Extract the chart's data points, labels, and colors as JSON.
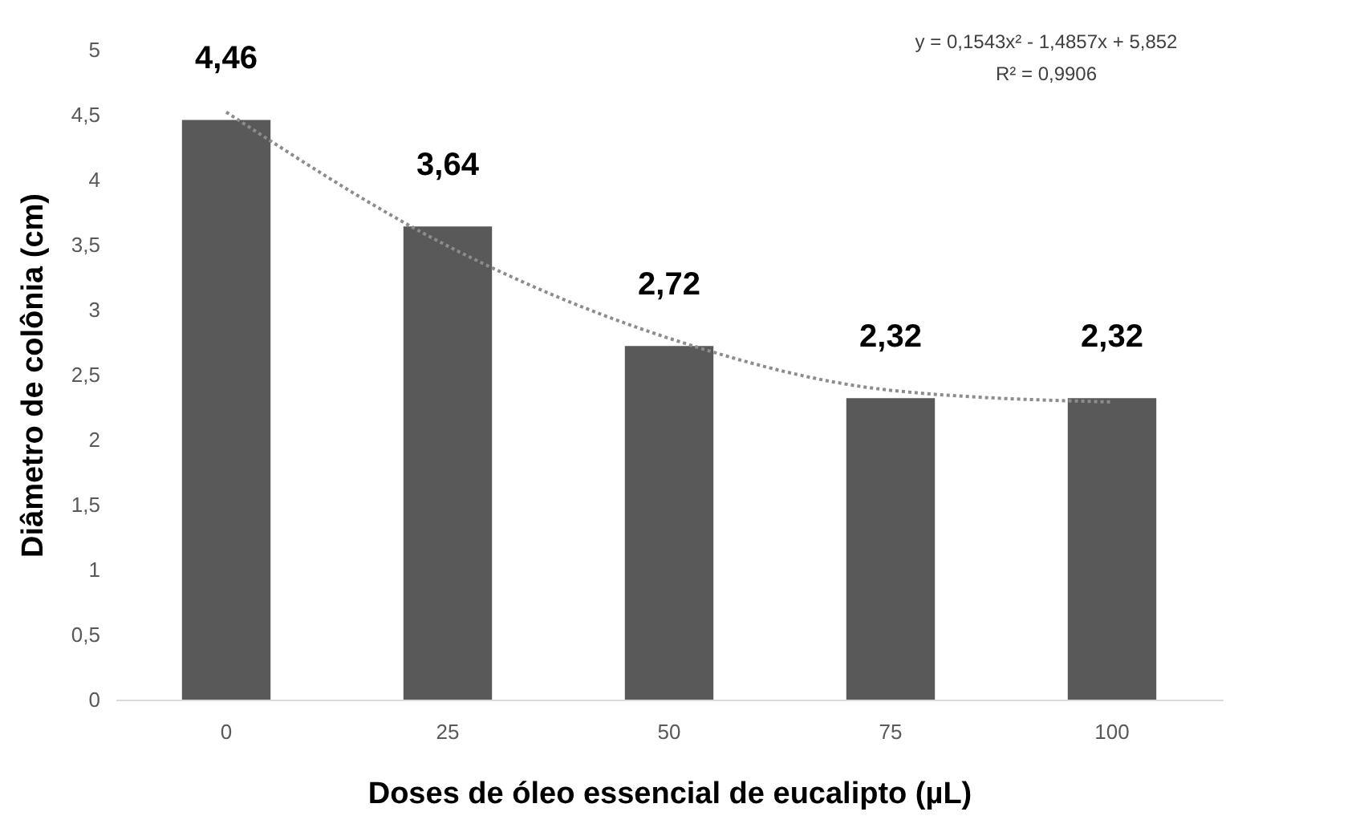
{
  "chart_data": {
    "type": "bar",
    "xlabel": "Doses de óleo essencial de eucalipto (µL)",
    "ylabel": "Diâmetro de colônia (cm)",
    "categories": [
      "0",
      "25",
      "50",
      "75",
      "100"
    ],
    "ylim": [
      0,
      5
    ],
    "yticks": [
      0,
      {
        "value": 0.5,
        "label": "0,5"
      },
      1,
      {
        "value": 1.5,
        "label": "1,5"
      },
      2,
      {
        "value": 2.5,
        "label": "2,5"
      },
      3,
      {
        "value": 3.5,
        "label": "3,5"
      },
      4,
      {
        "value": 4.5,
        "label": "4,5"
      },
      5
    ],
    "series": [
      {
        "color": "#595959",
        "values": [
          4.46,
          3.64,
          2.72,
          2.32,
          2.32
        ],
        "value_labels": [
          "4,46",
          "3,64",
          "2,72",
          "2,32",
          "2,32"
        ]
      },
      {
        "type": "line",
        "x": [
          "0",
          "25",
          "50",
          "75",
          "100"
        ],
        "values": [
          4.52,
          3.49,
          2.78,
          2.38,
          2.29
        ],
        "color": "#8c8c8c",
        "line_style": "dotted"
      }
    ],
    "annotations": [
      "y = 0,1543x² - 1,4857x + 5,852",
      "R² = 0,9906"
    ]
  }
}
